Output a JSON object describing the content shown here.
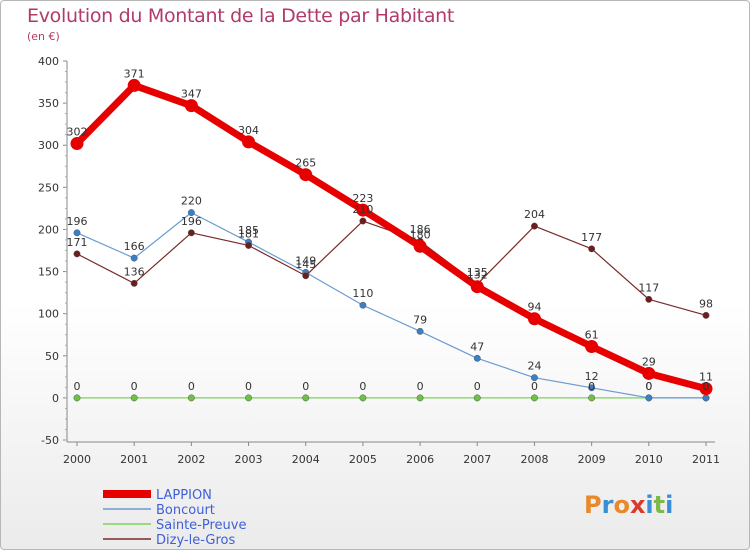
{
  "header": {
    "title": "Evolution du Montant de la Dette par Habitant",
    "subtitle": "(en €)"
  },
  "logo": {
    "text": "Proxiti",
    "colors": [
      "#e8892b",
      "#3a8ed6",
      "#e8892b",
      "#d93a2b",
      "#3a8ed6",
      "#7cb94a",
      "#3a8ed6"
    ]
  },
  "chart_data": {
    "type": "line",
    "title": "Evolution du Montant de la Dette par Habitant",
    "ylabel": "(en €)",
    "xlabel": "",
    "x": [
      "2000",
      "2001",
      "2002",
      "2003",
      "2004",
      "2005",
      "2006",
      "2007",
      "2008",
      "2009",
      "2010",
      "2011"
    ],
    "ylim": [
      -50,
      400
    ],
    "yticks": [
      -50,
      0,
      50,
      100,
      150,
      200,
      250,
      300,
      350,
      400
    ],
    "grid": false,
    "legend": "bottom-left",
    "series": [
      {
        "name": "LAPPION",
        "color": "#e60000",
        "values": [
          302,
          371,
          347,
          304,
          265,
          223,
          180,
          132,
          94,
          61,
          29,
          11
        ]
      },
      {
        "name": "Boncourt",
        "color": "#6a9bd1",
        "values": [
          196,
          166,
          220,
          185,
          149,
          110,
          79,
          47,
          24,
          12,
          0,
          0
        ]
      },
      {
        "name": "Sainte-Preuve",
        "color": "#7cd35a",
        "values": [
          0,
          0,
          0,
          0,
          0,
          0,
          0,
          0,
          0,
          0,
          0,
          0
        ]
      },
      {
        "name": "Dizy-le-Gros",
        "color": "#7a2a2a",
        "values": [
          171,
          136,
          196,
          181,
          145,
          210,
          186,
          135,
          204,
          177,
          117,
          98
        ]
      }
    ]
  }
}
